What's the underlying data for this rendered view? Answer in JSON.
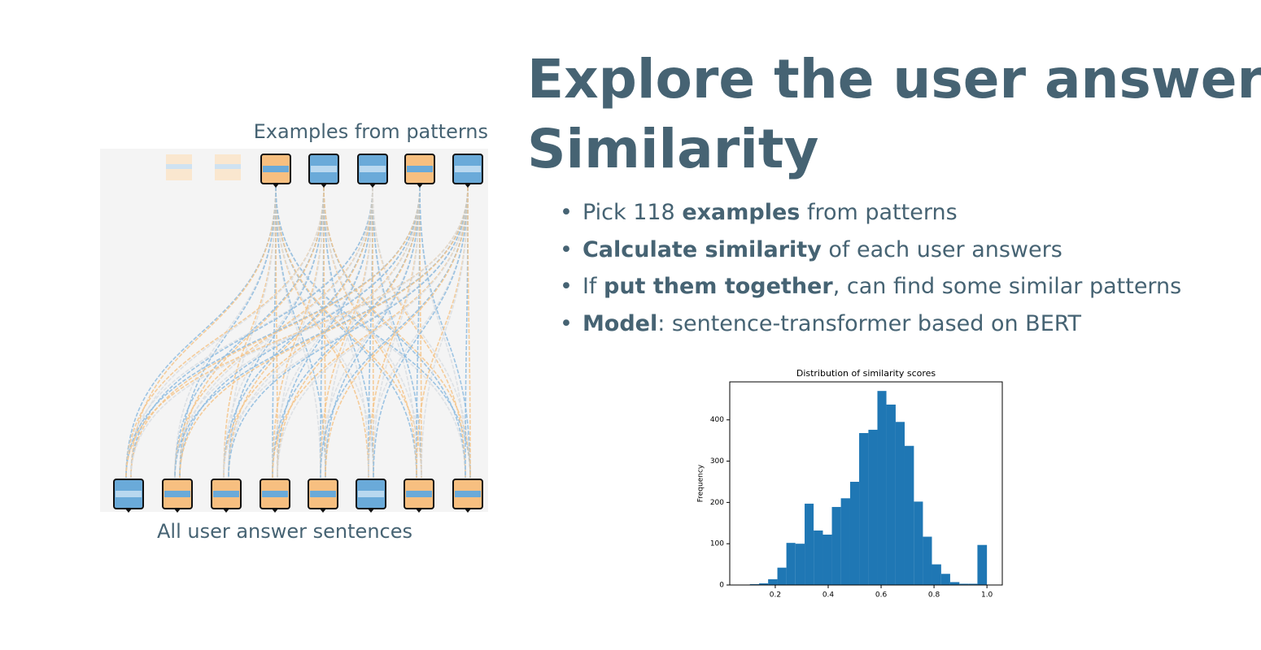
{
  "title_lines": [
    "Explore the user answers:",
    "Similarity"
  ],
  "bullets": [
    {
      "parts": [
        {
          "text": "Pick 118 "
        },
        {
          "text": "examples",
          "bold": true
        },
        {
          "text": " from patterns"
        }
      ]
    },
    {
      "parts": [
        {
          "text": "Calculate similarity",
          "bold": true
        },
        {
          "text": " of each user answers"
        }
      ]
    },
    {
      "parts": [
        {
          "text": "If "
        },
        {
          "text": "put them together",
          "bold": true
        },
        {
          "text": ", can find some similar patterns"
        }
      ]
    },
    {
      "parts": [
        {
          "text": "Model",
          "bold": true
        },
        {
          "text": ": sentence-transformer based on BERT"
        }
      ]
    }
  ],
  "diagram": {
    "top_caption": "Examples from patterns",
    "bottom_caption": "All user answer sentences"
  },
  "chart_data": {
    "type": "histogram",
    "title": "Distribution of similarity scores",
    "ylabel": "Frequency",
    "color": "#1f77b4",
    "bins": [
      0.07,
      0.104,
      0.139,
      0.173,
      0.208,
      0.242,
      0.276,
      0.311,
      0.345,
      0.38,
      0.414,
      0.448,
      0.483,
      0.517,
      0.552,
      0.586,
      0.62,
      0.655,
      0.689,
      0.724,
      0.758,
      0.792,
      0.827,
      0.861,
      0.896,
      0.93,
      0.964,
      1.0
    ],
    "values": [
      1,
      2,
      4,
      14,
      42,
      102,
      100,
      197,
      132,
      122,
      189,
      210,
      250,
      368,
      376,
      470,
      437,
      395,
      337,
      202,
      117,
      50,
      27,
      7,
      3,
      3,
      97
    ],
    "xlim": [
      0.028,
      1.058
    ],
    "ylim": [
      0,
      492
    ],
    "xticks": [
      0.2,
      0.4,
      0.6,
      0.8,
      {
        "value": 1,
        "label": "1.0"
      }
    ],
    "yticks": [
      0,
      100,
      200,
      300,
      400
    ]
  }
}
